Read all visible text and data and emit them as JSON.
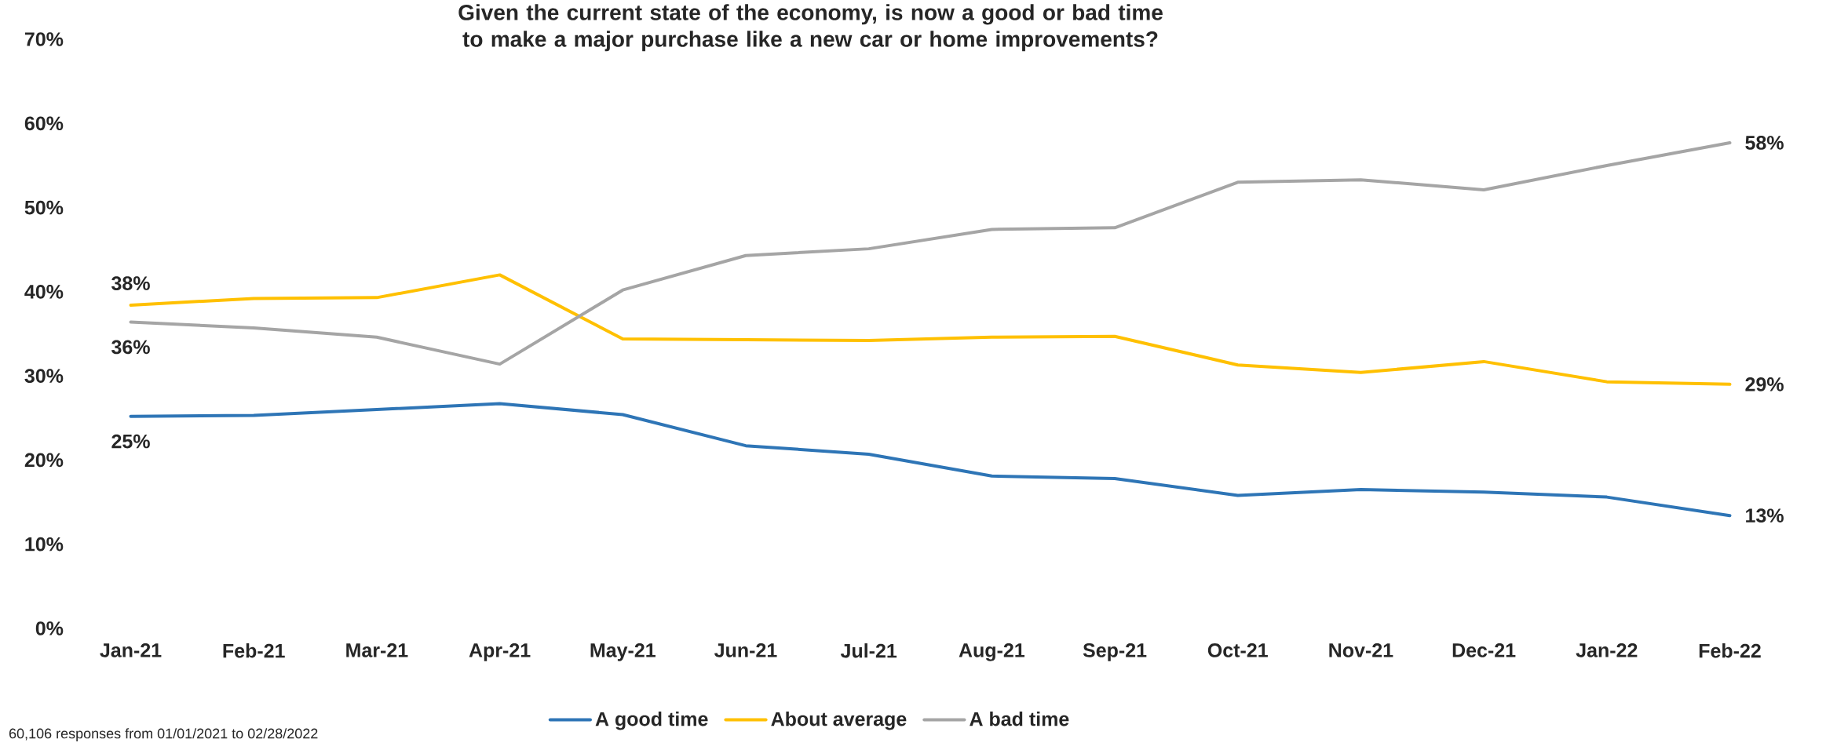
{
  "chart_data": {
    "type": "line",
    "title": "Given the current state of the economy, is now a good or bad time to make a major purchase like a new car or home improvements?",
    "categories": [
      "Jan-21",
      "Feb-21",
      "Mar-21",
      "Apr-21",
      "May-21",
      "Jun-21",
      "Jul-21",
      "Aug-21",
      "Sep-21",
      "Oct-21",
      "Nov-21",
      "Dec-21",
      "Jan-22",
      "Feb-22"
    ],
    "series": [
      {
        "name": "A good time",
        "color": "#2e75b6",
        "values": [
          25.2,
          25.3,
          26.0,
          26.7,
          25.4,
          21.7,
          20.7,
          18.1,
          17.8,
          15.8,
          16.5,
          16.2,
          15.6,
          13.4
        ],
        "value_labels": [
          "25%",
          null,
          null,
          null,
          null,
          null,
          null,
          null,
          null,
          null,
          null,
          null,
          null,
          "13%"
        ]
      },
      {
        "name": "About average",
        "color": "#ffc000",
        "values": [
          38.4,
          39.2,
          39.3,
          42.0,
          34.4,
          34.3,
          34.2,
          34.6,
          34.7,
          31.3,
          30.4,
          31.7,
          29.3,
          29.0
        ],
        "value_labels": [
          "38%",
          null,
          null,
          null,
          null,
          null,
          null,
          null,
          null,
          null,
          null,
          null,
          null,
          "29%"
        ]
      },
      {
        "name": "A bad time",
        "color": "#a5a5a5",
        "values": [
          36.4,
          35.7,
          34.6,
          31.4,
          40.2,
          44.3,
          45.1,
          47.4,
          47.6,
          53.0,
          53.3,
          52.1,
          55.0,
          57.7
        ],
        "value_labels": [
          "36%",
          null,
          null,
          null,
          null,
          null,
          null,
          null,
          null,
          null,
          null,
          null,
          null,
          "58%"
        ]
      }
    ],
    "ylim": [
      0,
      70
    ],
    "yticks": [
      {
        "value": 0,
        "label": "0%"
      },
      {
        "value": 10,
        "label": "10%"
      },
      {
        "value": 20,
        "label": "20%"
      },
      {
        "value": 30,
        "label": "30%"
      },
      {
        "value": 40,
        "label": "40%"
      },
      {
        "value": 50,
        "label": "50%"
      },
      {
        "value": 60,
        "label": "60%"
      },
      {
        "value": 70,
        "label": "70%"
      }
    ],
    "legend": "bottom",
    "marker": "none",
    "line_style": "solid",
    "annotations": [
      "60,106 responses from 01/01/2021 to 02/28/2022"
    ]
  }
}
